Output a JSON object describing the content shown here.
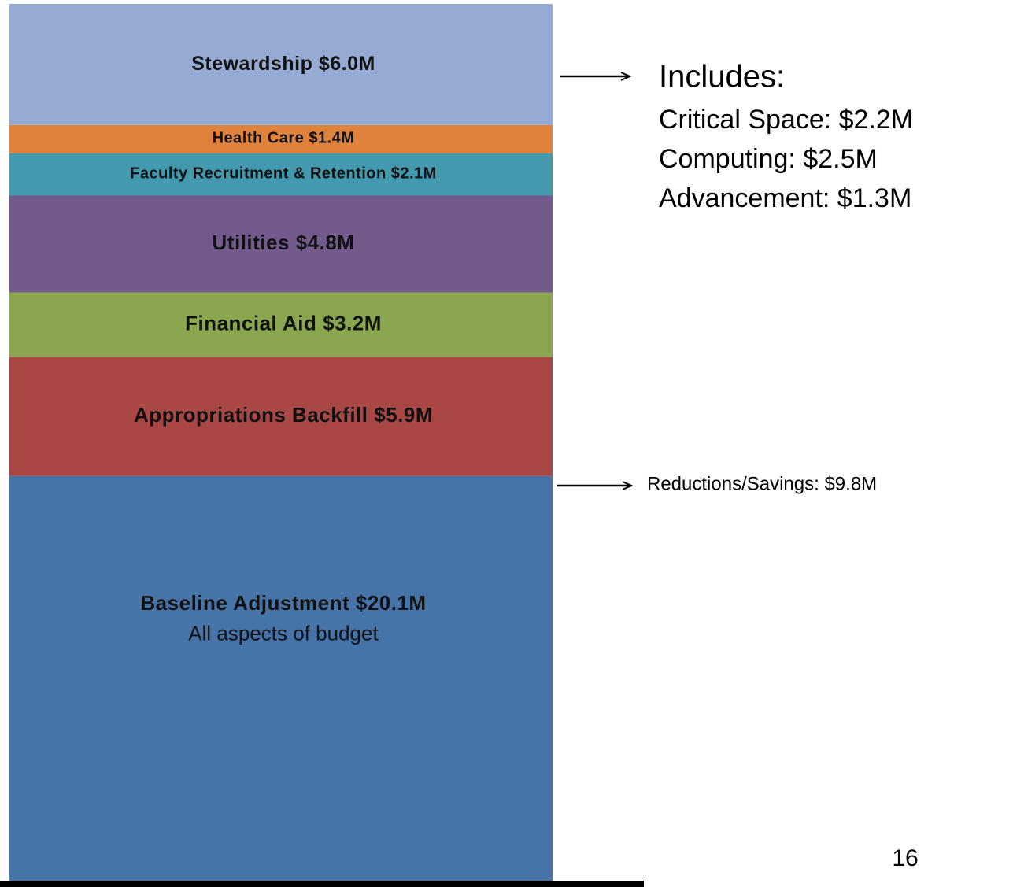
{
  "chart_data": {
    "type": "stacked-bar",
    "series": [
      {
        "name": "Baseline Adjustment",
        "color": "#4673a8",
        "values": [
          20.1
        ],
        "value_labels": [
          "$20.1M"
        ]
      },
      {
        "name": "Appropriations Backfill",
        "color": "#a84744",
        "values": [
          5.9
        ],
        "value_labels": [
          "$5.9M"
        ]
      },
      {
        "name": "Financial Aid",
        "color": "#8aa64f",
        "values": [
          3.2
        ],
        "value_labels": [
          "$3.2M"
        ]
      },
      {
        "name": "Utilities",
        "color": "#725a8d",
        "values": [
          4.8
        ],
        "value_labels": [
          "$4.8M"
        ]
      },
      {
        "name": "Faculty Recruitment & Retention",
        "color": "#4399ae",
        "values": [
          2.1
        ],
        "value_labels": [
          "$2.1M"
        ]
      },
      {
        "name": "Health Care",
        "color": "#e0823c",
        "values": [
          1.4
        ],
        "value_labels": [
          "$1.4M"
        ]
      },
      {
        "name": "Stewardship",
        "color": "#95abd3",
        "values": [
          6.0
        ],
        "value_labels": [
          "$6.0M"
        ]
      }
    ],
    "annotations": {
      "baseline_note": "All aspects of budget",
      "includes_title": "Includes:",
      "includes_items": [
        "Critical Space: $2.2M",
        "Computing: $2.5M",
        "Advancement: $1.3M"
      ],
      "reductions": "Reductions/Savings:  $9.8M"
    },
    "page_number": "16"
  }
}
